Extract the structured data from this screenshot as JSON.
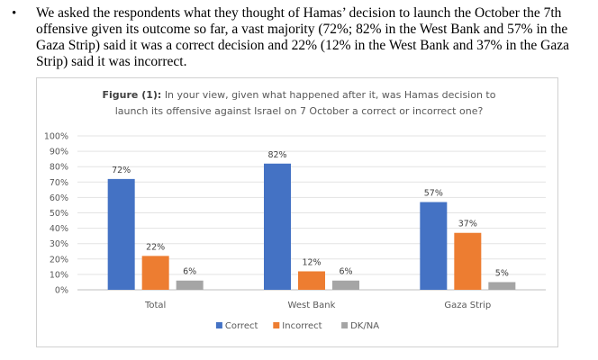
{
  "bullet": {
    "symbol": "•",
    "text": "We asked the respondents what they thought of Hamas’ decision to launch the October the 7th offensive given its outcome so far, a vast majority (72%; 82% in the West Bank and 57% in the Gaza Strip) said it was a correct decision and 22% (12% in the West Bank and 37% in the Gaza Strip) said it was incorrect."
  },
  "chart_data": {
    "type": "bar",
    "title_label": "Figure (1):",
    "title_line1": "In your view, given what happened after it, was Hamas decision to",
    "title_line2": "launch its offensive against Israel on 7 October a correct or incorrect one?",
    "categories": [
      "Total",
      "West Bank",
      "Gaza Strip"
    ],
    "series": [
      {
        "name": "Correct",
        "color": "#4472C4",
        "values": [
          72,
          82,
          57
        ]
      },
      {
        "name": "Incorrect",
        "color": "#ED7D31",
        "values": [
          22,
          12,
          37
        ]
      },
      {
        "name": "DK/NA",
        "color": "#A5A5A5",
        "values": [
          6,
          6,
          5
        ]
      }
    ],
    "ylim": [
      0,
      100
    ],
    "yticks": [
      "0%",
      "10%",
      "20%",
      "30%",
      "40%",
      "50%",
      "60%",
      "70%",
      "80%",
      "90%",
      "100%"
    ],
    "value_suffix": "%",
    "grid": true,
    "legend_position": "bottom"
  }
}
